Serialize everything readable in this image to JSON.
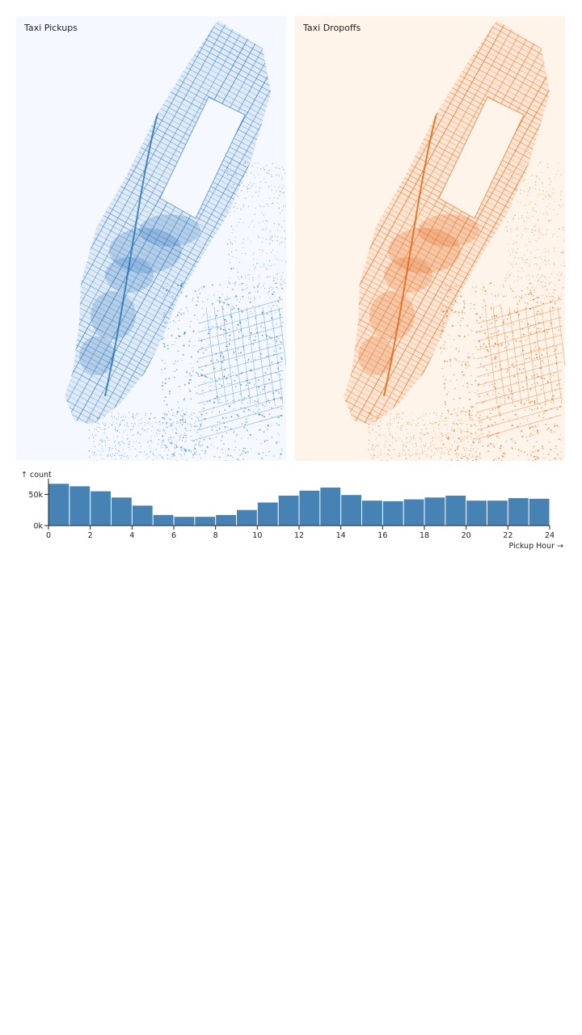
{
  "panels": {
    "pickups": {
      "title": "Taxi Pickups",
      "background": "#f5f9ff",
      "color": "#1f6eb4"
    },
    "dropoffs": {
      "title": "Taxi Dropoffs",
      "background": "#fff4e9",
      "color": "#e0600c"
    }
  },
  "chart_data": [
    {
      "type": "heatmap",
      "title": "Taxi Pickups",
      "colorscale": "blues"
    },
    {
      "type": "heatmap",
      "title": "Taxi Dropoffs",
      "colorscale": "oranges"
    },
    {
      "type": "bar",
      "xlabel": "Pickup Hour →",
      "ylabel": "↑ count",
      "xlim": [
        0,
        24
      ],
      "ylim": [
        0,
        70000
      ],
      "x_ticks": [
        "0",
        "2",
        "4",
        "6",
        "8",
        "10",
        "12",
        "14",
        "16",
        "18",
        "20",
        "22",
        "24"
      ],
      "y_ticks": [
        "0k",
        "50k"
      ],
      "bar_color": "#4682b4",
      "bins": [
        0,
        1,
        2,
        3,
        4,
        5,
        6,
        7,
        8,
        9,
        10,
        11,
        12,
        13,
        14,
        15,
        16,
        17,
        18,
        19,
        20,
        21,
        22,
        23
      ],
      "values": [
        67000,
        63000,
        55000,
        45000,
        32000,
        17000,
        14000,
        14000,
        17000,
        25000,
        37000,
        48000,
        56000,
        61000,
        49000,
        40000,
        39000,
        42000,
        45000,
        48000,
        40000,
        40000,
        44000,
        43000
      ]
    }
  ]
}
